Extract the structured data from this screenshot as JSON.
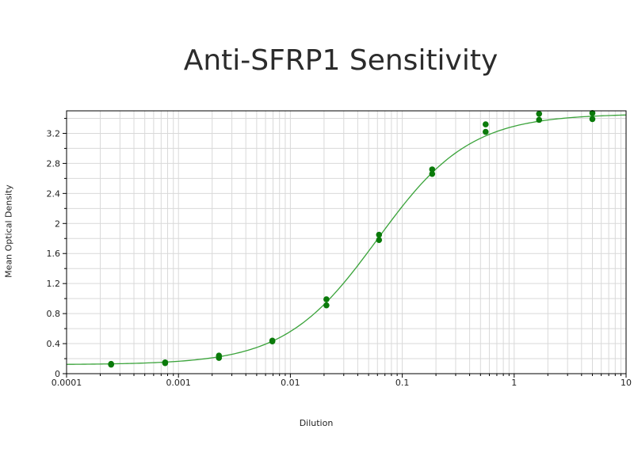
{
  "chart_data": {
    "type": "scatter",
    "title": "Anti-SFRP1 Sensitivity",
    "xlabel": "Dilution",
    "ylabel": "Mean Optical Density",
    "x_scale": "log",
    "xlim": [
      0.0001,
      10
    ],
    "ylim": [
      0,
      3.5
    ],
    "x_ticks": [
      0.0001,
      0.001,
      0.01,
      0.1,
      1,
      10
    ],
    "x_tick_labels": [
      "0.0001",
      "0.001",
      "0.01",
      "0.1",
      "1",
      "10"
    ],
    "y_ticks": [
      0,
      0.4,
      0.8,
      1.2,
      1.6,
      2,
      2.4,
      2.8,
      3.2
    ],
    "y_tick_labels": [
      "0",
      "0.4",
      "0.8",
      "1.2",
      "1.6",
      "2",
      "2.4",
      "2.8",
      "3.2"
    ],
    "grid": true,
    "colors": {
      "points": "#0a7a0a",
      "curve": "#3aa33a",
      "grid": "#d9d9d9",
      "axis": "#000000"
    },
    "points": [
      {
        "x": 0.00025,
        "y": 0.13
      },
      {
        "x": 0.00025,
        "y": 0.12
      },
      {
        "x": 0.00076,
        "y": 0.15
      },
      {
        "x": 0.00076,
        "y": 0.14
      },
      {
        "x": 0.0023,
        "y": 0.24
      },
      {
        "x": 0.0023,
        "y": 0.21
      },
      {
        "x": 0.0069,
        "y": 0.44
      },
      {
        "x": 0.0069,
        "y": 0.43
      },
      {
        "x": 0.021,
        "y": 0.99
      },
      {
        "x": 0.021,
        "y": 0.91
      },
      {
        "x": 0.062,
        "y": 1.85
      },
      {
        "x": 0.062,
        "y": 1.78
      },
      {
        "x": 0.185,
        "y": 2.72
      },
      {
        "x": 0.185,
        "y": 2.66
      },
      {
        "x": 0.556,
        "y": 3.32
      },
      {
        "x": 0.556,
        "y": 3.22
      },
      {
        "x": 1.67,
        "y": 3.46
      },
      {
        "x": 1.67,
        "y": 3.38
      },
      {
        "x": 5.0,
        "y": 3.47
      },
      {
        "x": 5.0,
        "y": 3.39
      }
    ],
    "fit_curve": {
      "model": "4PL",
      "bottom": 0.12,
      "top": 3.46,
      "ec50": 0.06,
      "hill": 1.05
    }
  }
}
